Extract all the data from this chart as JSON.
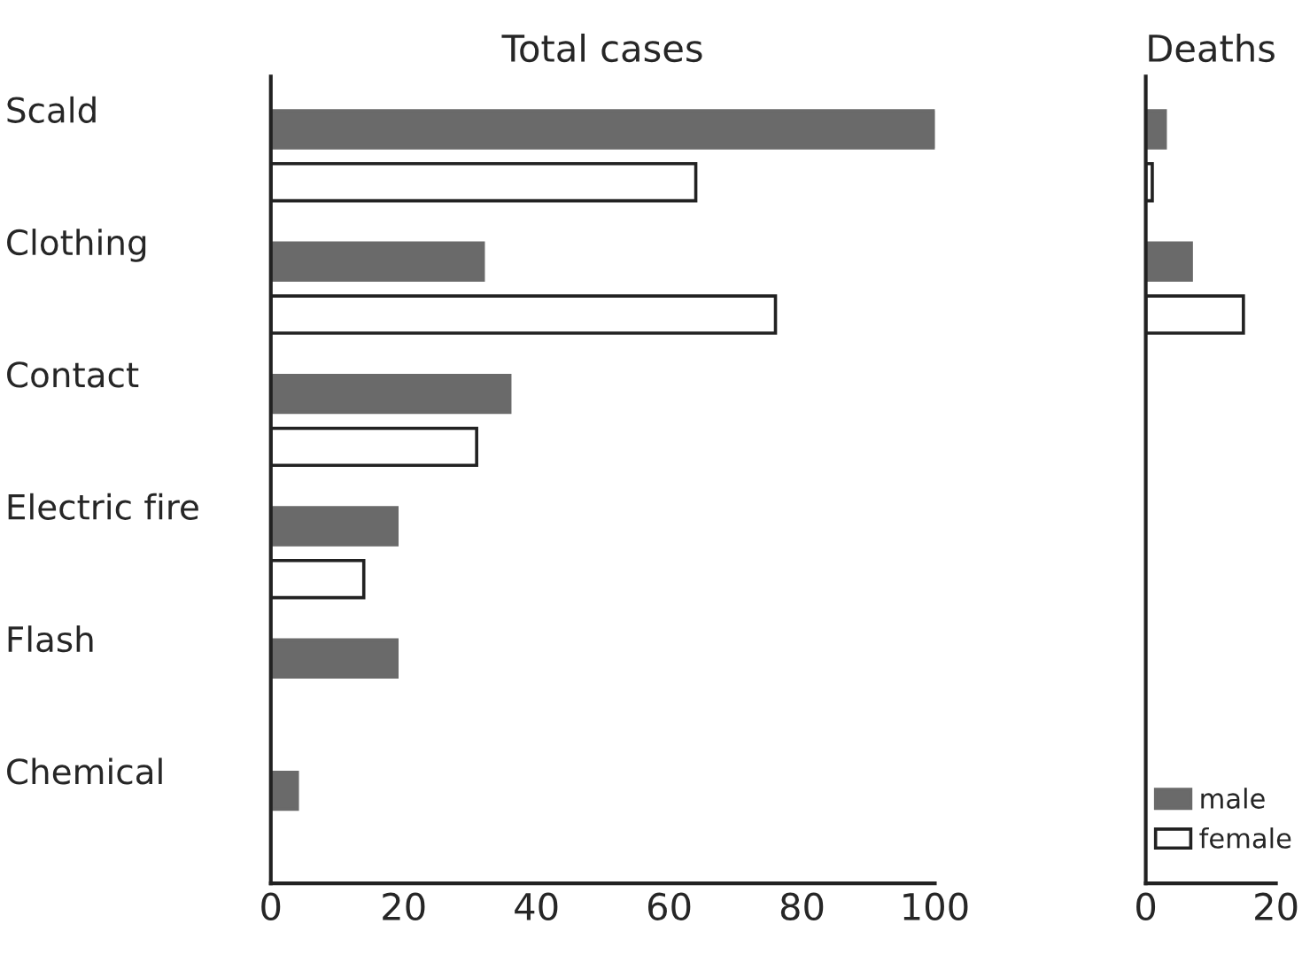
{
  "chart_data": [
    {
      "type": "bar",
      "orientation": "horizontal",
      "title": "Total cases",
      "categories": [
        "Scald",
        "Clothing",
        "Contact",
        "Electric fire",
        "Flash",
        "Chemical"
      ],
      "series": [
        {
          "color": "#6a6a6a",
          "values": [
            100,
            32,
            36,
            19,
            19,
            4
          ]
        },
        {
          "color": "#ffffff",
          "values": [
            64,
            76,
            31,
            14,
            0,
            0
          ]
        }
      ],
      "xlim": [
        0,
        100
      ],
      "xticks": [
        0,
        20,
        40,
        60,
        80,
        100
      ],
      "grid": false
    },
    {
      "type": "bar",
      "orientation": "horizontal",
      "title": "Deaths",
      "categories": [
        null,
        null,
        null,
        null,
        null,
        null
      ],
      "series": [
        {
          "name": "male",
          "color": "#6a6a6a",
          "values": [
            3,
            7,
            0,
            0,
            0,
            0
          ]
        },
        {
          "name": "female",
          "color": "#ffffff",
          "values": [
            1,
            15,
            0,
            0,
            0,
            0
          ]
        }
      ],
      "xlim": [
        0,
        20
      ],
      "xticks": [
        0,
        20
      ],
      "grid": false,
      "legend": "bottom",
      "tick_labels": "x"
    }
  ]
}
